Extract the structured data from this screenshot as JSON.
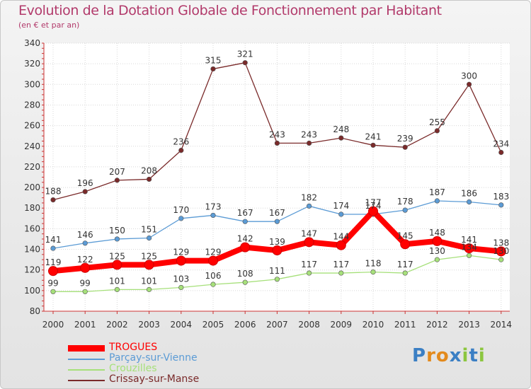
{
  "chart_data": {
    "type": "line",
    "title": "Evolution de la Dotation Globale de Fonctionnement par Habitant",
    "subtitle": "(en € et par an)",
    "xlabel": "",
    "ylabel": "",
    "ylim": [
      80,
      340
    ],
    "y_ticks": [
      80,
      100,
      120,
      140,
      160,
      180,
      200,
      220,
      240,
      260,
      280,
      300,
      320,
      340
    ],
    "grid": true,
    "legend_position": "bottom-left",
    "categories": [
      "2000",
      "2001",
      "2002",
      "2003",
      "2004",
      "2005",
      "2006",
      "2007",
      "2008",
      "2009",
      "2010",
      "2011",
      "2012",
      "2013",
      "2014"
    ],
    "series": [
      {
        "name": "TROGUES",
        "color": "#ff0000",
        "values": [
          119,
          122,
          125,
          125,
          129,
          129,
          142,
          139,
          147,
          144,
          177,
          145,
          148,
          141,
          138
        ]
      },
      {
        "name": "Parçay-sur-Vienne",
        "color": "#5b9bd5",
        "values": [
          141,
          146,
          150,
          151,
          170,
          173,
          167,
          167,
          182,
          174,
          174,
          178,
          187,
          186,
          183
        ]
      },
      {
        "name": "Crouzilles",
        "color": "#a6e07a",
        "values": [
          99,
          99,
          101,
          101,
          103,
          106,
          108,
          111,
          117,
          117,
          118,
          117,
          130,
          134,
          130
        ]
      },
      {
        "name": "Crissay-sur-Manse",
        "color": "#7a2a2a",
        "values": [
          188,
          196,
          207,
          208,
          236,
          315,
          321,
          243,
          243,
          248,
          241,
          239,
          255,
          300,
          234
        ]
      }
    ],
    "visible_point_labels": {
      "TROGUES": [
        "119",
        "122",
        "125",
        "125",
        "129",
        "129",
        "142",
        "139",
        "147",
        "144",
        "177",
        "145",
        "148",
        "141",
        "138"
      ],
      "Parçay-sur-Vienne": [
        "141",
        "146",
        "150",
        "151",
        "170",
        "173",
        "167",
        "167",
        "182",
        "174",
        "174",
        "178",
        "187",
        "186",
        "183"
      ],
      "Crouzilles": [
        "99",
        "99",
        "101",
        "101",
        "103",
        "106",
        "108",
        "111",
        "117",
        "117",
        "118",
        "117",
        "130",
        "134",
        "130"
      ],
      "Crissay-sur-Manse": [
        "188",
        "196",
        "207",
        "208",
        "236",
        "315",
        "321",
        "243",
        "243",
        "248",
        "241",
        "239",
        "255",
        "300",
        "234"
      ]
    }
  },
  "brand": {
    "letters": [
      "P",
      "r",
      "o",
      "x",
      "i",
      "t",
      "i"
    ],
    "colors": [
      "#3b7fc4",
      "#e38a1c",
      "#e38a1c",
      "#3b7fc4",
      "#8cc63f",
      "#3b7fc4",
      "#8cc63f"
    ]
  }
}
